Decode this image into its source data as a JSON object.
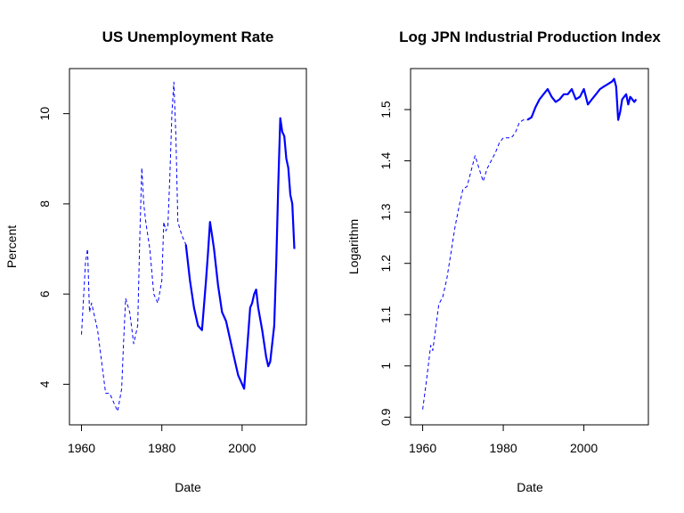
{
  "chart_data": [
    {
      "type": "line",
      "title": "US Unemployment Rate",
      "xlabel": "Date",
      "ylabel": "Percent",
      "xlim": [
        1957,
        2016
      ],
      "ylim": [
        3.1,
        11.0
      ],
      "xticks": [
        1960,
        1980,
        2000
      ],
      "yticks": [
        4,
        6,
        8,
        10
      ],
      "grid": false,
      "series_color": "#0000ff",
      "series": [
        {
          "style": "dashed",
          "x": [
            1960,
            1961,
            1961.5,
            1962,
            1962.5,
            1963,
            1964,
            1965,
            1966,
            1967,
            1968,
            1969,
            1970,
            1970.5,
            1971,
            1972,
            1973,
            1974,
            1974.5,
            1975,
            1975.5,
            1976,
            1977,
            1978,
            1979,
            1980,
            1980.5,
            1981,
            1981.5,
            1982,
            1982.5,
            1983,
            1983.5,
            1984,
            1985,
            1986
          ],
          "y": [
            5.1,
            6.7,
            7.0,
            5.6,
            5.8,
            5.6,
            5.2,
            4.5,
            3.8,
            3.8,
            3.6,
            3.4,
            3.9,
            5.0,
            5.9,
            5.6,
            4.9,
            5.3,
            7.2,
            8.8,
            8.0,
            7.6,
            7.0,
            6.0,
            5.8,
            6.3,
            7.6,
            7.4,
            7.5,
            8.6,
            10.0,
            10.7,
            9.5,
            7.6,
            7.3,
            7.1
          ]
        },
        {
          "style": "solid",
          "x": [
            1986,
            1987,
            1988,
            1989,
            1990,
            1991,
            1991.5,
            1992,
            1992.5,
            1993,
            1994,
            1995,
            1996,
            1997,
            1998,
            1999,
            2000,
            2000.5,
            2001,
            2002,
            2002.5,
            2003,
            2003.5,
            2004,
            2005,
            2006,
            2006.5,
            2007,
            2008,
            2008.5,
            2009,
            2009.5,
            2010,
            2010.5,
            2011,
            2011.5,
            2012,
            2012.5,
            2013
          ],
          "y": [
            7.1,
            6.3,
            5.7,
            5.3,
            5.2,
            6.3,
            6.9,
            7.6,
            7.3,
            7.0,
            6.2,
            5.6,
            5.4,
            5.0,
            4.6,
            4.2,
            4.0,
            3.9,
            4.5,
            5.7,
            5.8,
            6.0,
            6.1,
            5.7,
            5.2,
            4.6,
            4.4,
            4.5,
            5.3,
            6.7,
            8.4,
            9.9,
            9.6,
            9.5,
            9.0,
            8.8,
            8.2,
            8.0,
            7.0
          ]
        }
      ]
    },
    {
      "type": "line",
      "title": "Log JPN Industrial Production Index",
      "xlabel": "Date",
      "ylabel": "Logarithm",
      "xlim": [
        1957,
        2016
      ],
      "ylim": [
        0.885,
        1.58
      ],
      "xticks": [
        1960,
        1980,
        2000
      ],
      "yticks": [
        0.9,
        1.0,
        1.1,
        1.2,
        1.3,
        1.4,
        1.5
      ],
      "grid": false,
      "series_color": "#0000ff",
      "series": [
        {
          "style": "dashed",
          "x": [
            1960,
            1961,
            1962,
            1962.5,
            1963,
            1964,
            1965,
            1966,
            1967,
            1968,
            1969,
            1970,
            1971,
            1972,
            1973,
            1974,
            1975,
            1976,
            1977,
            1978,
            1979,
            1980,
            1981,
            1982,
            1983,
            1984,
            1985,
            1986
          ],
          "y": [
            0.915,
            0.975,
            1.04,
            1.03,
            1.06,
            1.12,
            1.135,
            1.17,
            1.22,
            1.27,
            1.31,
            1.345,
            1.35,
            1.38,
            1.41,
            1.385,
            1.36,
            1.385,
            1.4,
            1.415,
            1.435,
            1.445,
            1.445,
            1.445,
            1.455,
            1.475,
            1.48,
            1.48
          ]
        },
        {
          "style": "solid",
          "x": [
            1986,
            1987,
            1988,
            1989,
            1990,
            1991,
            1992,
            1993,
            1994,
            1995,
            1996,
            1997,
            1998,
            1999,
            2000,
            2001,
            2002,
            2003,
            2004,
            2005,
            2006,
            2007,
            2007.5,
            2008,
            2008.5,
            2009,
            2009.5,
            2010,
            2010.5,
            2011,
            2011.5,
            2012,
            2012.5,
            2013
          ],
          "y": [
            1.48,
            1.485,
            1.505,
            1.52,
            1.53,
            1.54,
            1.525,
            1.515,
            1.52,
            1.53,
            1.53,
            1.54,
            1.52,
            1.525,
            1.54,
            1.51,
            1.52,
            1.53,
            1.54,
            1.545,
            1.55,
            1.555,
            1.56,
            1.545,
            1.48,
            1.495,
            1.52,
            1.525,
            1.53,
            1.51,
            1.525,
            1.52,
            1.515,
            1.52
          ]
        }
      ]
    }
  ]
}
